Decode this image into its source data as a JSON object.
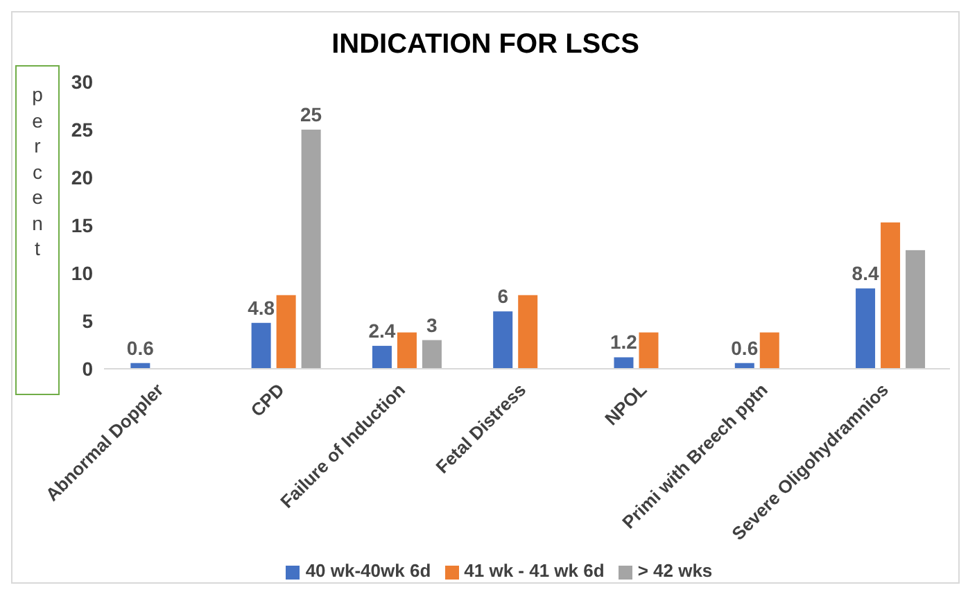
{
  "chart_data": {
    "type": "bar",
    "title": "INDICATION FOR LSCS",
    "ylabel": "percent",
    "categories": [
      "Abnormal Doppler",
      "CPD",
      "Failure of Induction",
      "Fetal Distress",
      "NPOL",
      "Primi with Breech pptn",
      "Severe Oligohydramnios"
    ],
    "series": [
      {
        "name": "40 wk-40wk 6d",
        "color": "#4472c4",
        "values": [
          0.6,
          4.8,
          2.4,
          6,
          1.2,
          0.6,
          8.4
        ],
        "value_labels": [
          "0.6",
          "4.8",
          "2.4",
          "6",
          "1.2",
          "0.6",
          "8.4"
        ]
      },
      {
        "name": "41 wk - 41 wk 6d",
        "color": "#ed7d31",
        "values": [
          null,
          7.7,
          3.8,
          7.7,
          3.8,
          3.8,
          15.3
        ]
      },
      {
        "name": "> 42 wks",
        "color": "#a5a5a5",
        "values": [
          null,
          25,
          3,
          null,
          null,
          null,
          12.4
        ],
        "value_labels": [
          null,
          "25",
          "3",
          null,
          null,
          null,
          null
        ]
      }
    ],
    "ylim": [
      0,
      30
    ],
    "yticks": [
      0,
      5,
      10,
      15,
      20,
      25,
      30
    ],
    "grid": false,
    "legend": "bottom"
  }
}
